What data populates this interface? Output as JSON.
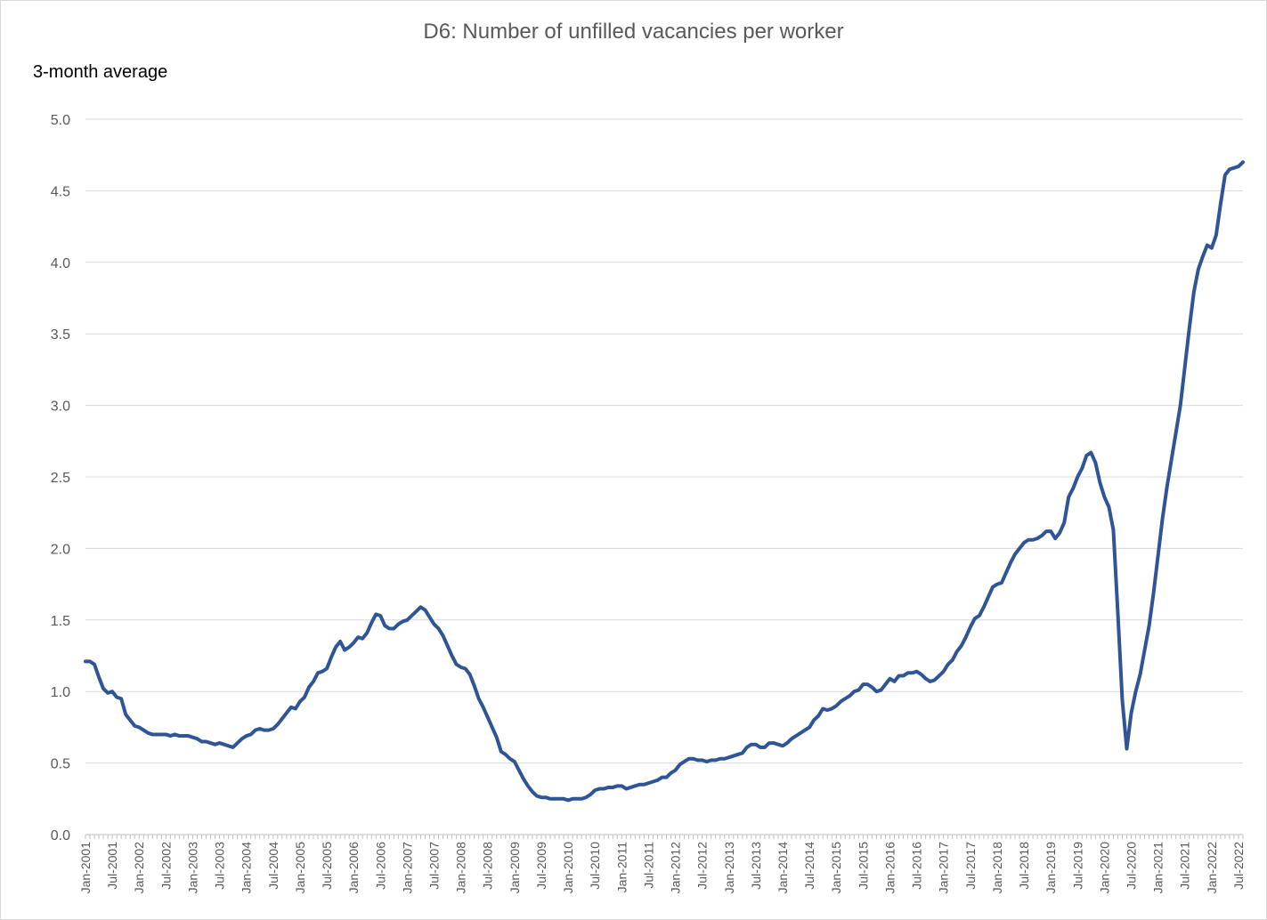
{
  "chart_data": {
    "type": "line",
    "title": "D6: Number of unfilled vacancies per worker",
    "ylabel": "3-month average",
    "xlabel": "",
    "ylim": [
      0,
      5
    ],
    "yticks": [
      "0.0",
      "0.5",
      "1.0",
      "1.5",
      "2.0",
      "2.5",
      "3.0",
      "3.5",
      "4.0",
      "4.5",
      "5.0"
    ],
    "grid": "horizontal",
    "legend": "none",
    "line_color": "#2F5597",
    "x_start": "Jan-2001",
    "x_end": "Jul-2022",
    "x_tick_labels": [
      "Jan-2001",
      "Jul-2001",
      "Jan-2002",
      "Jul-2002",
      "Jan-2003",
      "Jul-2003",
      "Jan-2004",
      "Jul-2004",
      "Jan-2005",
      "Jul-2005",
      "Jan-2006",
      "Jul-2006",
      "Jan-2007",
      "Jul-2007",
      "Jan-2008",
      "Jul-2008",
      "Jan-2009",
      "Jul-2009",
      "Jan-2010",
      "Jul-2010",
      "Jan-2011",
      "Jul-2011",
      "Jan-2012",
      "Jul-2012",
      "Jan-2013",
      "Jul-2013",
      "Jan-2014",
      "Jul-2014",
      "Jan-2015",
      "Jul-2015",
      "Jan-2016",
      "Jul-2016",
      "Jan-2017",
      "Jul-2017",
      "Jan-2018",
      "Jul-2018",
      "Jan-2019",
      "Jul-2019",
      "Jan-2020",
      "Jul-2020",
      "Jan-2021",
      "Jul-2021",
      "Jan-2022",
      "Jul-2022"
    ],
    "series": [
      {
        "points": [
          [
            "Jan-2001",
            1.21
          ],
          [
            "Feb-2001",
            1.21
          ],
          [
            "Mar-2001",
            1.19
          ],
          [
            "Apr-2001",
            1.1
          ],
          [
            "May-2001",
            1.02
          ],
          [
            "Jun-2001",
            0.99
          ],
          [
            "Jul-2001",
            1.0
          ],
          [
            "Aug-2001",
            0.96
          ],
          [
            "Sep-2001",
            0.95
          ],
          [
            "Oct-2001",
            0.84
          ],
          [
            "Nov-2001",
            0.8
          ],
          [
            "Dec-2001",
            0.76
          ],
          [
            "Jan-2002",
            0.75
          ],
          [
            "Feb-2002",
            0.73
          ],
          [
            "Mar-2002",
            0.71
          ],
          [
            "Apr-2002",
            0.7
          ],
          [
            "May-2002",
            0.7
          ],
          [
            "Jun-2002",
            0.7
          ],
          [
            "Jul-2002",
            0.7
          ],
          [
            "Aug-2002",
            0.69
          ],
          [
            "Sep-2002",
            0.7
          ],
          [
            "Oct-2002",
            0.69
          ],
          [
            "Nov-2002",
            0.69
          ],
          [
            "Dec-2002",
            0.69
          ],
          [
            "Jan-2003",
            0.68
          ],
          [
            "Feb-2003",
            0.67
          ],
          [
            "Mar-2003",
            0.65
          ],
          [
            "Apr-2003",
            0.65
          ],
          [
            "May-2003",
            0.64
          ],
          [
            "Jun-2003",
            0.63
          ],
          [
            "Jul-2003",
            0.64
          ],
          [
            "Aug-2003",
            0.63
          ],
          [
            "Sep-2003",
            0.62
          ],
          [
            "Oct-2003",
            0.61
          ],
          [
            "Nov-2003",
            0.64
          ],
          [
            "Dec-2003",
            0.67
          ],
          [
            "Jan-2004",
            0.69
          ],
          [
            "Feb-2004",
            0.7
          ],
          [
            "Mar-2004",
            0.73
          ],
          [
            "Apr-2004",
            0.74
          ],
          [
            "May-2004",
            0.73
          ],
          [
            "Jun-2004",
            0.73
          ],
          [
            "Jul-2004",
            0.74
          ],
          [
            "Aug-2004",
            0.77
          ],
          [
            "Sep-2004",
            0.81
          ],
          [
            "Oct-2004",
            0.85
          ],
          [
            "Nov-2004",
            0.89
          ],
          [
            "Dec-2004",
            0.88
          ],
          [
            "Jan-2005",
            0.93
          ],
          [
            "Feb-2005",
            0.96
          ],
          [
            "Mar-2005",
            1.03
          ],
          [
            "Apr-2005",
            1.07
          ],
          [
            "May-2005",
            1.13
          ],
          [
            "Jun-2005",
            1.14
          ],
          [
            "Jul-2005",
            1.16
          ],
          [
            "Aug-2005",
            1.24
          ],
          [
            "Sep-2005",
            1.31
          ],
          [
            "Oct-2005",
            1.35
          ],
          [
            "Nov-2005",
            1.29
          ],
          [
            "Dec-2005",
            1.31
          ],
          [
            "Jan-2006",
            1.34
          ],
          [
            "Feb-2006",
            1.38
          ],
          [
            "Mar-2006",
            1.37
          ],
          [
            "Apr-2006",
            1.41
          ],
          [
            "May-2006",
            1.48
          ],
          [
            "Jun-2006",
            1.54
          ],
          [
            "Jul-2006",
            1.53
          ],
          [
            "Aug-2006",
            1.46
          ],
          [
            "Sep-2006",
            1.44
          ],
          [
            "Oct-2006",
            1.44
          ],
          [
            "Nov-2006",
            1.47
          ],
          [
            "Dec-2006",
            1.49
          ],
          [
            "Jan-2007",
            1.5
          ],
          [
            "Feb-2007",
            1.53
          ],
          [
            "Mar-2007",
            1.56
          ],
          [
            "Apr-2007",
            1.59
          ],
          [
            "May-2007",
            1.57
          ],
          [
            "Jun-2007",
            1.52
          ],
          [
            "Jul-2007",
            1.47
          ],
          [
            "Aug-2007",
            1.44
          ],
          [
            "Sep-2007",
            1.39
          ],
          [
            "Oct-2007",
            1.32
          ],
          [
            "Nov-2007",
            1.25
          ],
          [
            "Dec-2007",
            1.19
          ],
          [
            "Jan-2008",
            1.17
          ],
          [
            "Feb-2008",
            1.16
          ],
          [
            "Mar-2008",
            1.12
          ],
          [
            "Apr-2008",
            1.04
          ],
          [
            "May-2008",
            0.95
          ],
          [
            "Jun-2008",
            0.89
          ],
          [
            "Jul-2008",
            0.82
          ],
          [
            "Aug-2008",
            0.75
          ],
          [
            "Sep-2008",
            0.68
          ],
          [
            "Oct-2008",
            0.58
          ],
          [
            "Nov-2008",
            0.56
          ],
          [
            "Dec-2008",
            0.53
          ],
          [
            "Jan-2009",
            0.51
          ],
          [
            "Feb-2009",
            0.45
          ],
          [
            "Mar-2009",
            0.39
          ],
          [
            "Apr-2009",
            0.34
          ],
          [
            "May-2009",
            0.3
          ],
          [
            "Jun-2009",
            0.27
          ],
          [
            "Jul-2009",
            0.26
          ],
          [
            "Aug-2009",
            0.26
          ],
          [
            "Sep-2009",
            0.25
          ],
          [
            "Oct-2009",
            0.25
          ],
          [
            "Nov-2009",
            0.25
          ],
          [
            "Dec-2009",
            0.25
          ],
          [
            "Jan-2010",
            0.24
          ],
          [
            "Feb-2010",
            0.25
          ],
          [
            "Mar-2010",
            0.25
          ],
          [
            "Apr-2010",
            0.25
          ],
          [
            "May-2010",
            0.26
          ],
          [
            "Jun-2010",
            0.28
          ],
          [
            "Jul-2010",
            0.31
          ],
          [
            "Aug-2010",
            0.32
          ],
          [
            "Sep-2010",
            0.32
          ],
          [
            "Oct-2010",
            0.33
          ],
          [
            "Nov-2010",
            0.33
          ],
          [
            "Dec-2010",
            0.34
          ],
          [
            "Jan-2011",
            0.34
          ],
          [
            "Feb-2011",
            0.32
          ],
          [
            "Mar-2011",
            0.33
          ],
          [
            "Apr-2011",
            0.34
          ],
          [
            "May-2011",
            0.35
          ],
          [
            "Jun-2011",
            0.35
          ],
          [
            "Jul-2011",
            0.36
          ],
          [
            "Aug-2011",
            0.37
          ],
          [
            "Sep-2011",
            0.38
          ],
          [
            "Oct-2011",
            0.4
          ],
          [
            "Nov-2011",
            0.4
          ],
          [
            "Dec-2011",
            0.43
          ],
          [
            "Jan-2012",
            0.45
          ],
          [
            "Feb-2012",
            0.49
          ],
          [
            "Mar-2012",
            0.51
          ],
          [
            "Apr-2012",
            0.53
          ],
          [
            "May-2012",
            0.53
          ],
          [
            "Jun-2012",
            0.52
          ],
          [
            "Jul-2012",
            0.52
          ],
          [
            "Aug-2012",
            0.51
          ],
          [
            "Sep-2012",
            0.52
          ],
          [
            "Oct-2012",
            0.52
          ],
          [
            "Nov-2012",
            0.53
          ],
          [
            "Dec-2012",
            0.53
          ],
          [
            "Jan-2013",
            0.54
          ],
          [
            "Feb-2013",
            0.55
          ],
          [
            "Mar-2013",
            0.56
          ],
          [
            "Apr-2013",
            0.57
          ],
          [
            "May-2013",
            0.61
          ],
          [
            "Jun-2013",
            0.63
          ],
          [
            "Jul-2013",
            0.63
          ],
          [
            "Aug-2013",
            0.61
          ],
          [
            "Sep-2013",
            0.61
          ],
          [
            "Oct-2013",
            0.64
          ],
          [
            "Nov-2013",
            0.64
          ],
          [
            "Dec-2013",
            0.63
          ],
          [
            "Jan-2014",
            0.62
          ],
          [
            "Feb-2014",
            0.64
          ],
          [
            "Mar-2014",
            0.67
          ],
          [
            "Apr-2014",
            0.69
          ],
          [
            "May-2014",
            0.71
          ],
          [
            "Jun-2014",
            0.73
          ],
          [
            "Jul-2014",
            0.75
          ],
          [
            "Aug-2014",
            0.8
          ],
          [
            "Sep-2014",
            0.83
          ],
          [
            "Oct-2014",
            0.88
          ],
          [
            "Nov-2014",
            0.87
          ],
          [
            "Dec-2014",
            0.88
          ],
          [
            "Jan-2015",
            0.9
          ],
          [
            "Feb-2015",
            0.93
          ],
          [
            "Mar-2015",
            0.95
          ],
          [
            "Apr-2015",
            0.97
          ],
          [
            "May-2015",
            1.0
          ],
          [
            "Jun-2015",
            1.01
          ],
          [
            "Jul-2015",
            1.05
          ],
          [
            "Aug-2015",
            1.05
          ],
          [
            "Sep-2015",
            1.03
          ],
          [
            "Oct-2015",
            1.0
          ],
          [
            "Nov-2015",
            1.01
          ],
          [
            "Dec-2015",
            1.05
          ],
          [
            "Jan-2016",
            1.09
          ],
          [
            "Feb-2016",
            1.07
          ],
          [
            "Mar-2016",
            1.11
          ],
          [
            "Apr-2016",
            1.11
          ],
          [
            "May-2016",
            1.13
          ],
          [
            "Jun-2016",
            1.13
          ],
          [
            "Jul-2016",
            1.14
          ],
          [
            "Aug-2016",
            1.12
          ],
          [
            "Sep-2016",
            1.09
          ],
          [
            "Oct-2016",
            1.07
          ],
          [
            "Nov-2016",
            1.08
          ],
          [
            "Dec-2016",
            1.11
          ],
          [
            "Jan-2017",
            1.14
          ],
          [
            "Feb-2017",
            1.19
          ],
          [
            "Mar-2017",
            1.22
          ],
          [
            "Apr-2017",
            1.28
          ],
          [
            "May-2017",
            1.32
          ],
          [
            "Jun-2017",
            1.38
          ],
          [
            "Jul-2017",
            1.45
          ],
          [
            "Aug-2017",
            1.51
          ],
          [
            "Sep-2017",
            1.53
          ],
          [
            "Oct-2017",
            1.59
          ],
          [
            "Nov-2017",
            1.66
          ],
          [
            "Dec-2017",
            1.73
          ],
          [
            "Jan-2018",
            1.75
          ],
          [
            "Feb-2018",
            1.76
          ],
          [
            "Mar-2018",
            1.83
          ],
          [
            "Apr-2018",
            1.9
          ],
          [
            "May-2018",
            1.96
          ],
          [
            "Jun-2018",
            2.0
          ],
          [
            "Jul-2018",
            2.04
          ],
          [
            "Aug-2018",
            2.06
          ],
          [
            "Sep-2018",
            2.06
          ],
          [
            "Oct-2018",
            2.07
          ],
          [
            "Nov-2018",
            2.09
          ],
          [
            "Dec-2018",
            2.12
          ],
          [
            "Jan-2019",
            2.12
          ],
          [
            "Feb-2019",
            2.07
          ],
          [
            "Mar-2019",
            2.11
          ],
          [
            "Apr-2019",
            2.18
          ],
          [
            "May-2019",
            2.36
          ],
          [
            "Jun-2019",
            2.42
          ],
          [
            "Jul-2019",
            2.5
          ],
          [
            "Aug-2019",
            2.56
          ],
          [
            "Sep-2019",
            2.65
          ],
          [
            "Oct-2019",
            2.67
          ],
          [
            "Nov-2019",
            2.6
          ],
          [
            "Dec-2019",
            2.46
          ],
          [
            "Jan-2020",
            2.36
          ],
          [
            "Feb-2020",
            2.29
          ],
          [
            "Mar-2020",
            2.13
          ],
          [
            "Apr-2020",
            1.55
          ],
          [
            "May-2020",
            0.94
          ],
          [
            "Jun-2020",
            0.6
          ],
          [
            "Jul-2020",
            0.85
          ],
          [
            "Aug-2020",
            1.0
          ],
          [
            "Sep-2020",
            1.12
          ],
          [
            "Oct-2020",
            1.29
          ],
          [
            "Nov-2020",
            1.46
          ],
          [
            "Dec-2020",
            1.69
          ],
          [
            "Jan-2021",
            1.95
          ],
          [
            "Feb-2021",
            2.21
          ],
          [
            "Mar-2021",
            2.43
          ],
          [
            "Apr-2021",
            2.62
          ],
          [
            "May-2021",
            2.81
          ],
          [
            "Jun-2021",
            3.0
          ],
          [
            "Jul-2021",
            3.27
          ],
          [
            "Aug-2021",
            3.54
          ],
          [
            "Sep-2021",
            3.79
          ],
          [
            "Oct-2021",
            3.95
          ],
          [
            "Nov-2021",
            4.04
          ],
          [
            "Dec-2021",
            4.12
          ],
          [
            "Jan-2022",
            4.1
          ],
          [
            "Feb-2022",
            4.19
          ],
          [
            "Mar-2022",
            4.41
          ],
          [
            "Apr-2022",
            4.61
          ],
          [
            "May-2022",
            4.65
          ],
          [
            "Jun-2022",
            4.66
          ],
          [
            "Jul-2022",
            4.67
          ],
          [
            "Aug-2022",
            4.7
          ]
        ]
      }
    ]
  }
}
